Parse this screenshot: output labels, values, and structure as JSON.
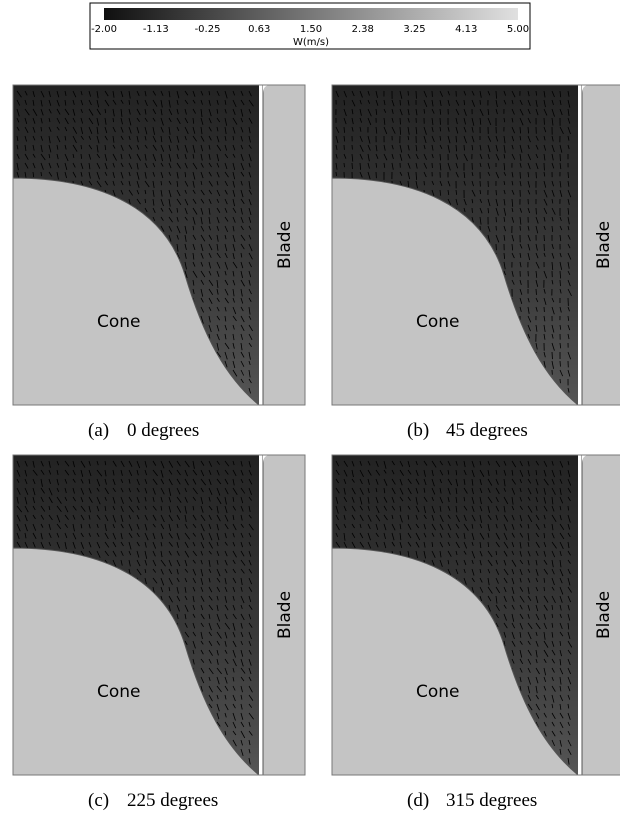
{
  "colorbar": {
    "ticks": [
      "-2.00",
      "-1.13",
      "-0.25",
      "0.63",
      "1.50",
      "2.38",
      "3.25",
      "4.13",
      "5.00"
    ],
    "label": "W(m/s)"
  },
  "panels": [
    {
      "label": "(a)",
      "caption": "0 degrees",
      "cone": "Cone",
      "blade": "Blade"
    },
    {
      "label": "(b)",
      "caption": "45 degrees",
      "cone": "Cone",
      "blade": "Blade"
    },
    {
      "label": "(c)",
      "caption": "225 degrees",
      "cone": "Cone",
      "blade": "Blade"
    },
    {
      "label": "(d)",
      "caption": "315 degrees",
      "cone": "Cone",
      "blade": "Blade"
    }
  ]
}
